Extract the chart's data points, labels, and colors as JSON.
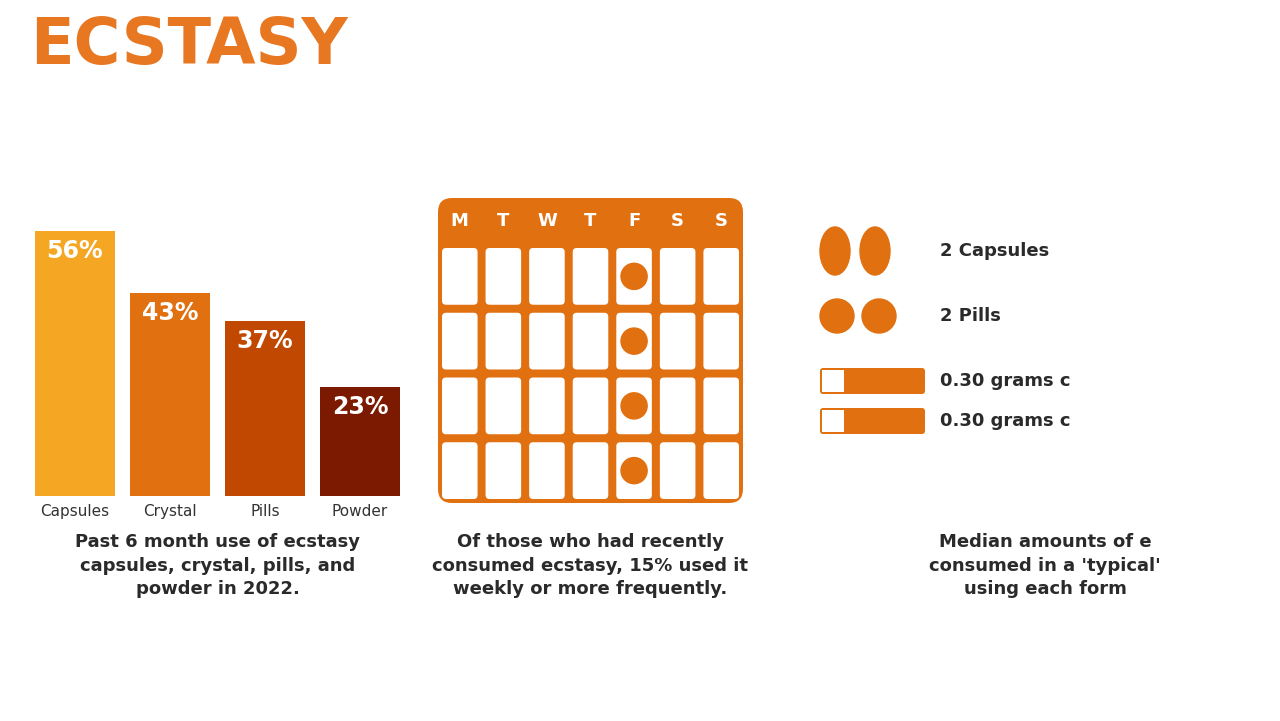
{
  "title": "ECSTASY",
  "title_color": "#E87722",
  "title_fontsize": 46,
  "background_color": "#FFFFFF",
  "bar_categories": [
    "Capsules",
    "Crystal",
    "Pills",
    "Powder"
  ],
  "bar_values": [
    56,
    43,
    37,
    23
  ],
  "bar_colors": [
    "#F5A623",
    "#E07010",
    "#C04800",
    "#7B1A00"
  ],
  "bar_labels": [
    "56%",
    "43%",
    "37%",
    "23%"
  ],
  "bar_caption": "Past 6 month use of ecstasy\ncapsules, crystal, pills, and\npowder in 2022.",
  "calendar_days": [
    "M",
    "T",
    "W",
    "T",
    "F",
    "S",
    "S"
  ],
  "calendar_dot_col": 4,
  "calendar_rows": 4,
  "calendar_bg": "#E07010",
  "calendar_caption": "Of those who had recently\nconsumed ecstasy, 15% used it\nweekly or more frequently.",
  "icons_caption": "Median amounts of e\nconsumed in a 'typical'\nusing each form",
  "icon_labels": [
    "2 Capsules",
    "2 Pills",
    "0.30 grams c",
    "0.30 grams c"
  ],
  "icon_color": "#E07010"
}
